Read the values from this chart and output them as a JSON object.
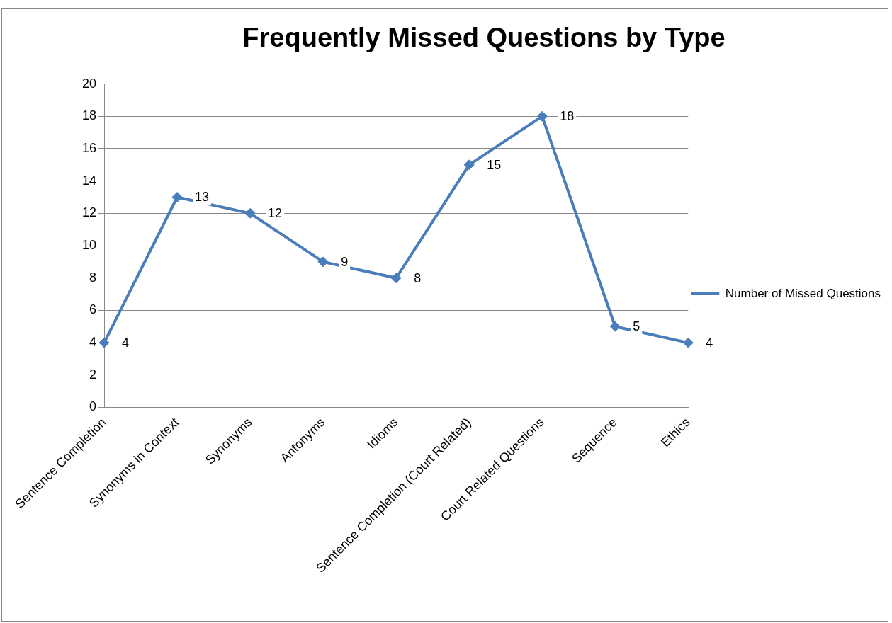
{
  "chart_data": {
    "type": "line",
    "title": "Frequently Missed Questions by Type",
    "categories": [
      "Sentence Completion",
      "Synonyms in Context",
      "Synonyms",
      "Antonyms",
      "Idioms",
      "Sentence Completion (Court Related)",
      "Court Related Questions",
      "Sequence",
      "Ethics"
    ],
    "series": [
      {
        "name": "Number of Missed Questions",
        "color": "#4a7ebb",
        "values": [
          4,
          13,
          12,
          9,
          8,
          15,
          18,
          5,
          4
        ]
      }
    ],
    "ylim": [
      0,
      20
    ],
    "yticks": [
      0,
      2,
      4,
      6,
      8,
      10,
      12,
      14,
      16,
      18,
      20
    ],
    "grid": "y",
    "legend": "right",
    "marker": "diamond",
    "line_style": "solid",
    "data_labels": true
  }
}
